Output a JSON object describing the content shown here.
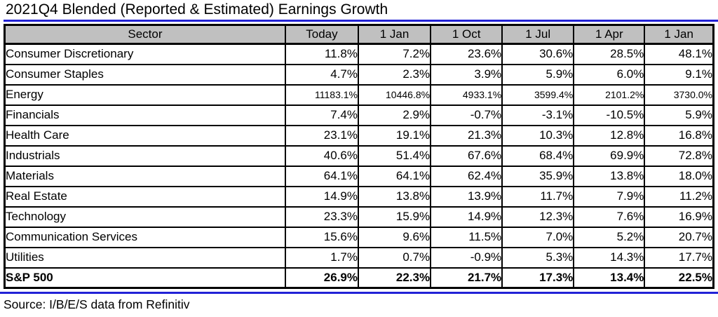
{
  "title": "2021Q4 Blended (Reported & Estimated) Earnings Growth",
  "source": "Source: I/B/E/S data from Refinitiv",
  "colors": {
    "header_bg": "#c0c0c0",
    "rule_blue": "#2121d6",
    "border_black": "#000000"
  },
  "table": {
    "columns": [
      "Sector",
      "Today",
      "1 Jan",
      "1 Oct",
      "1 Jul",
      "1 Apr",
      "1 Jan"
    ],
    "rows": [
      {
        "sector": "Consumer Discretionary",
        "values": [
          "11.8%",
          "7.2%",
          "23.6%",
          "30.6%",
          "28.5%",
          "48.1%"
        ],
        "bold": false
      },
      {
        "sector": "Consumer Staples",
        "values": [
          "4.7%",
          "2.3%",
          "3.9%",
          "5.9%",
          "6.0%",
          "9.1%"
        ],
        "bold": false
      },
      {
        "sector": "Energy",
        "values": [
          "11183.1%",
          "10446.8%",
          "4933.1%",
          "3599.4%",
          "2101.2%",
          "3730.0%"
        ],
        "bold": false
      },
      {
        "sector": "Financials",
        "values": [
          "7.4%",
          "2.9%",
          "-0.7%",
          "-3.1%",
          "-10.5%",
          "5.9%"
        ],
        "bold": false
      },
      {
        "sector": "Health Care",
        "values": [
          "23.1%",
          "19.1%",
          "21.3%",
          "10.3%",
          "12.8%",
          "16.8%"
        ],
        "bold": false
      },
      {
        "sector": "Industrials",
        "values": [
          "40.6%",
          "51.4%",
          "67.6%",
          "68.4%",
          "69.9%",
          "72.8%"
        ],
        "bold": false
      },
      {
        "sector": "Materials",
        "values": [
          "64.1%",
          "64.1%",
          "62.4%",
          "35.9%",
          "13.8%",
          "18.0%"
        ],
        "bold": false
      },
      {
        "sector": "Real Estate",
        "values": [
          "14.9%",
          "13.8%",
          "13.9%",
          "11.7%",
          "7.9%",
          "11.2%"
        ],
        "bold": false
      },
      {
        "sector": "Technology",
        "values": [
          "23.3%",
          "15.9%",
          "14.9%",
          "12.3%",
          "7.6%",
          "16.9%"
        ],
        "bold": false
      },
      {
        "sector": "Communication Services",
        "values": [
          "15.6%",
          "9.6%",
          "11.5%",
          "7.0%",
          "5.2%",
          "20.7%"
        ],
        "bold": false
      },
      {
        "sector": "Utilities",
        "values": [
          "1.7%",
          "0.7%",
          "-0.9%",
          "5.3%",
          "14.3%",
          "17.7%"
        ],
        "bold": false
      },
      {
        "sector": "S&P 500",
        "values": [
          "26.9%",
          "22.3%",
          "21.7%",
          "17.3%",
          "13.4%",
          "22.5%"
        ],
        "bold": true
      }
    ]
  }
}
